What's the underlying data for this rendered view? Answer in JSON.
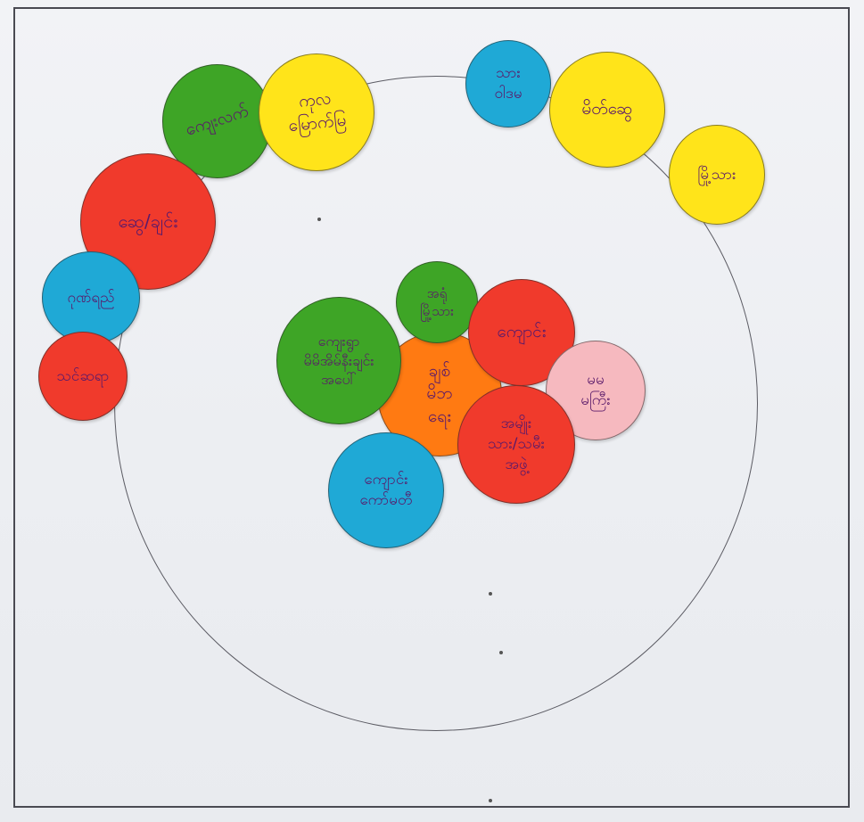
{
  "colors": {
    "green": "#3ea526",
    "yellow": "#ffe41a",
    "red": "#f03a2c",
    "blue": "#1fa9d6",
    "orange": "#ff7a12",
    "pink": "#f6b9bf"
  },
  "circles": [
    {
      "id": "c1",
      "color": "green",
      "label": "ကျေးလက်"
    },
    {
      "id": "c2",
      "color": "yellow",
      "label": "ကုလ\nမြောက်မြ"
    },
    {
      "id": "c3",
      "color": "blue",
      "label": "သား\nဝါဒမ"
    },
    {
      "id": "c4",
      "color": "yellow",
      "label": "မိတ်ဆွေ"
    },
    {
      "id": "c5",
      "color": "yellow",
      "label": "မြို့သား"
    },
    {
      "id": "c6",
      "color": "red",
      "label": "ဆွေ/ချင်း"
    },
    {
      "id": "c7",
      "color": "blue",
      "label": "ဂုဏ်ရည်"
    },
    {
      "id": "c8",
      "color": "red",
      "label": "သင်ဆရာ"
    },
    {
      "id": "c9",
      "color": "green",
      "label": "အရုံ\nမြို့သား"
    },
    {
      "id": "c10",
      "color": "red",
      "label": "ကျောင်း"
    },
    {
      "id": "c11",
      "color": "green",
      "label": "ကျေးရွာ\nမိမိအိမ်နီးချင်း\nအပေါ်"
    },
    {
      "id": "c12",
      "color": "orange",
      "label": "ချစ်\nမိဘ\nရေး"
    },
    {
      "id": "c13",
      "color": "pink",
      "label": "မမ\nမကြီး"
    },
    {
      "id": "c14",
      "color": "red",
      "label": "အမျိုး\nသား/သမီး\nအဖွဲ့"
    },
    {
      "id": "c15",
      "color": "blue",
      "label": "ကျောင်း\nကော်မတီ"
    }
  ]
}
